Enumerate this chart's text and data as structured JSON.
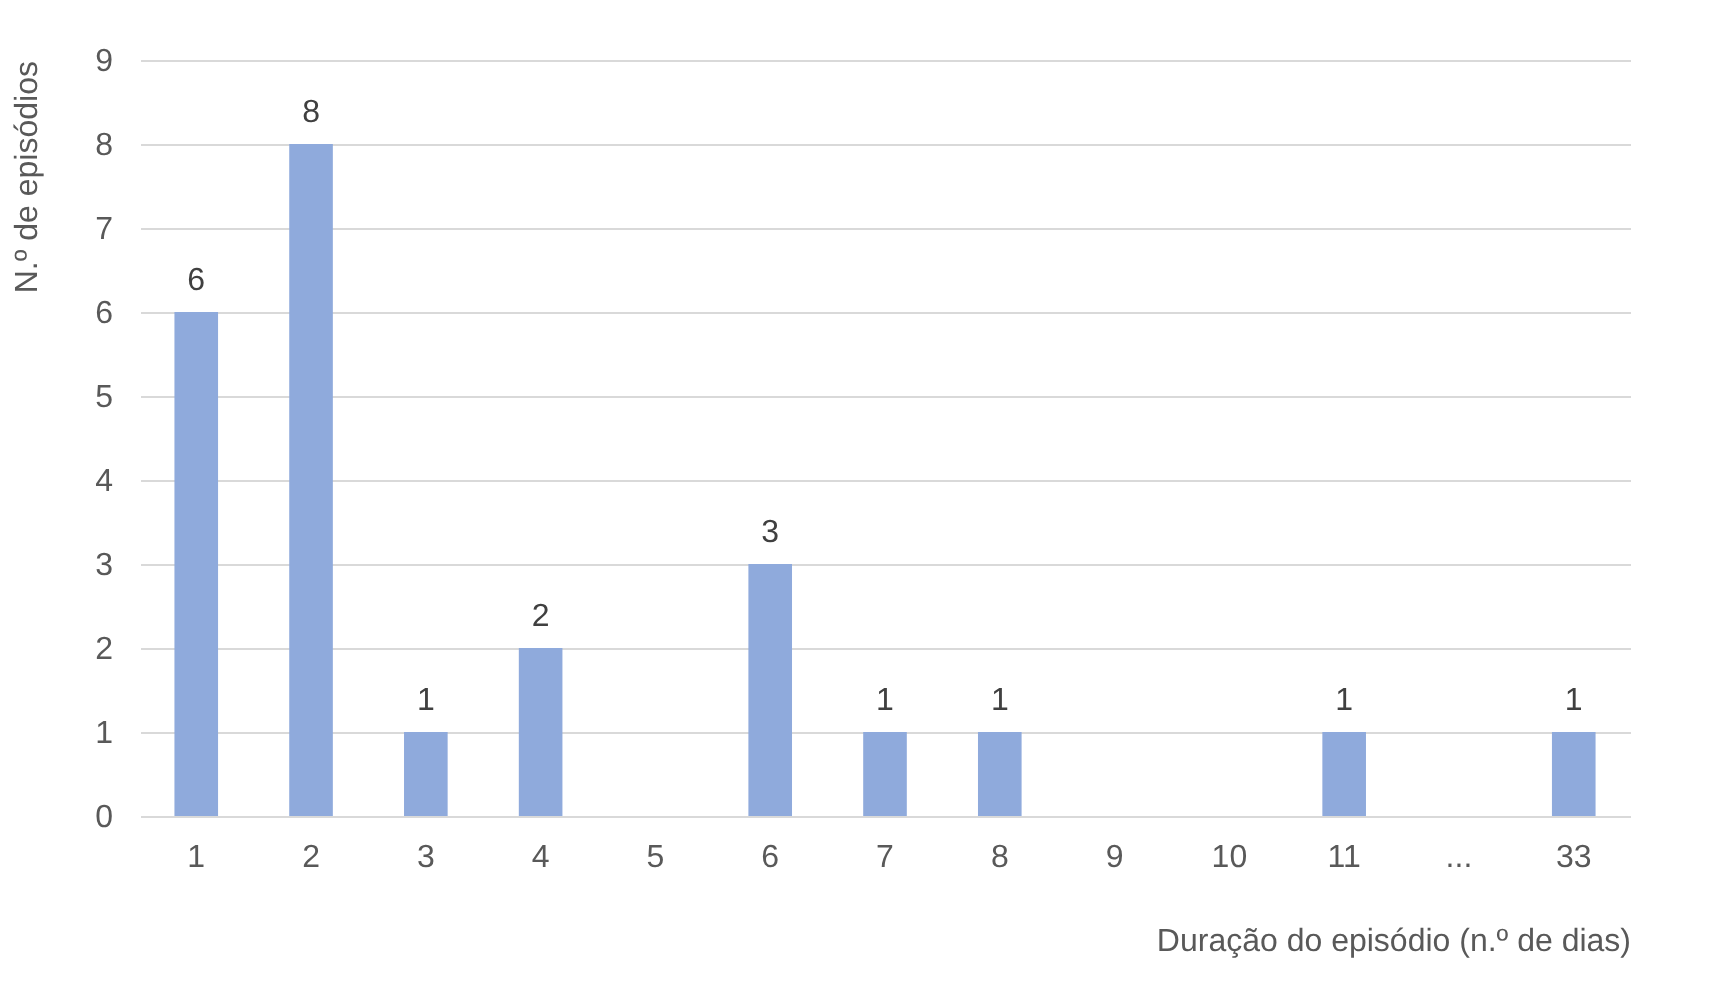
{
  "chart_data": {
    "type": "bar",
    "xlabel": "Duração do episódio (n.º de dias)",
    "ylabel": "N.º de episódios",
    "categories": [
      "1",
      "2",
      "3",
      "4",
      "5",
      "6",
      "7",
      "8",
      "9",
      "10",
      "11",
      "...",
      "33"
    ],
    "values": [
      6,
      8,
      1,
      2,
      0,
      3,
      1,
      1,
      0,
      0,
      1,
      0,
      1
    ],
    "value_labels": [
      "6",
      "8",
      "1",
      "2",
      null,
      "3",
      "1",
      "1",
      null,
      null,
      "1",
      null,
      "1"
    ],
    "color": "#8faadc",
    "ylim": [
      0,
      9
    ],
    "yticks": [
      0,
      1,
      2,
      3,
      4,
      5,
      6,
      7,
      8,
      9
    ],
    "grid": "y"
  }
}
